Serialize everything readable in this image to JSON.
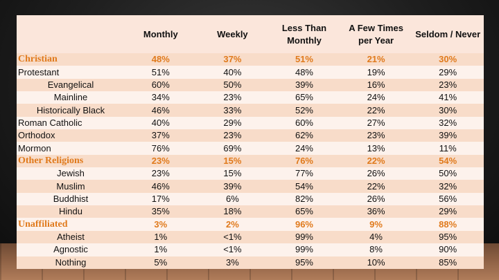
{
  "table": {
    "headers": [
      "",
      "Monthly",
      "Weekly",
      "Less Than Monthly",
      "A Few Times per Year",
      "Seldom / Never"
    ],
    "rows": [
      {
        "label": "Christian",
        "type": "category",
        "values": [
          "48%",
          "37%",
          "51%",
          "21%",
          "30%"
        ]
      },
      {
        "label": "Protestant",
        "type": "sub",
        "values": [
          "51%",
          "40%",
          "48%",
          "19%",
          "29%"
        ]
      },
      {
        "label": "Evangelical",
        "type": "subsub",
        "values": [
          "60%",
          "50%",
          "39%",
          "16%",
          "23%"
        ]
      },
      {
        "label": "Mainline",
        "type": "subsub",
        "values": [
          "34%",
          "23%",
          "65%",
          "24%",
          "41%"
        ]
      },
      {
        "label": "Historically Black",
        "type": "subsub",
        "values": [
          "46%",
          "33%",
          "52%",
          "22%",
          "30%"
        ]
      },
      {
        "label": "Roman Catholic",
        "type": "sub",
        "values": [
          "40%",
          "29%",
          "60%",
          "27%",
          "32%"
        ]
      },
      {
        "label": "Orthodox",
        "type": "sub",
        "values": [
          "37%",
          "23%",
          "62%",
          "23%",
          "39%"
        ]
      },
      {
        "label": "Mormon",
        "type": "sub",
        "values": [
          "76%",
          "69%",
          "24%",
          "13%",
          "11%"
        ]
      },
      {
        "label": "Other Religions",
        "type": "category",
        "values": [
          "23%",
          "15%",
          "76%",
          "22%",
          "54%"
        ]
      },
      {
        "label": "Jewish",
        "type": "subsub",
        "values": [
          "23%",
          "15%",
          "77%",
          "26%",
          "50%"
        ]
      },
      {
        "label": "Muslim",
        "type": "subsub",
        "values": [
          "46%",
          "39%",
          "54%",
          "22%",
          "32%"
        ]
      },
      {
        "label": "Buddhist",
        "type": "subsub",
        "values": [
          "17%",
          "6%",
          "82%",
          "26%",
          "56%"
        ]
      },
      {
        "label": "Hindu",
        "type": "subsub",
        "values": [
          "35%",
          "18%",
          "65%",
          "36%",
          "29%"
        ]
      },
      {
        "label": "Unaffiliated",
        "type": "category",
        "values": [
          "3%",
          "2%",
          "96%",
          "9%",
          "88%"
        ]
      },
      {
        "label": "Atheist",
        "type": "subsub",
        "values": [
          "1%",
          "<1%",
          "99%",
          "4%",
          "95%"
        ]
      },
      {
        "label": "Agnostic",
        "type": "subsub",
        "values": [
          "1%",
          "<1%",
          "99%",
          "8%",
          "90%"
        ]
      },
      {
        "label": "Nothing",
        "type": "subsub",
        "values": [
          "5%",
          "3%",
          "95%",
          "10%",
          "85%"
        ]
      }
    ]
  },
  "colors": {
    "accent": "#e07a1c",
    "row_odd": "#f8dcc9",
    "row_even": "#fdf2ec"
  }
}
